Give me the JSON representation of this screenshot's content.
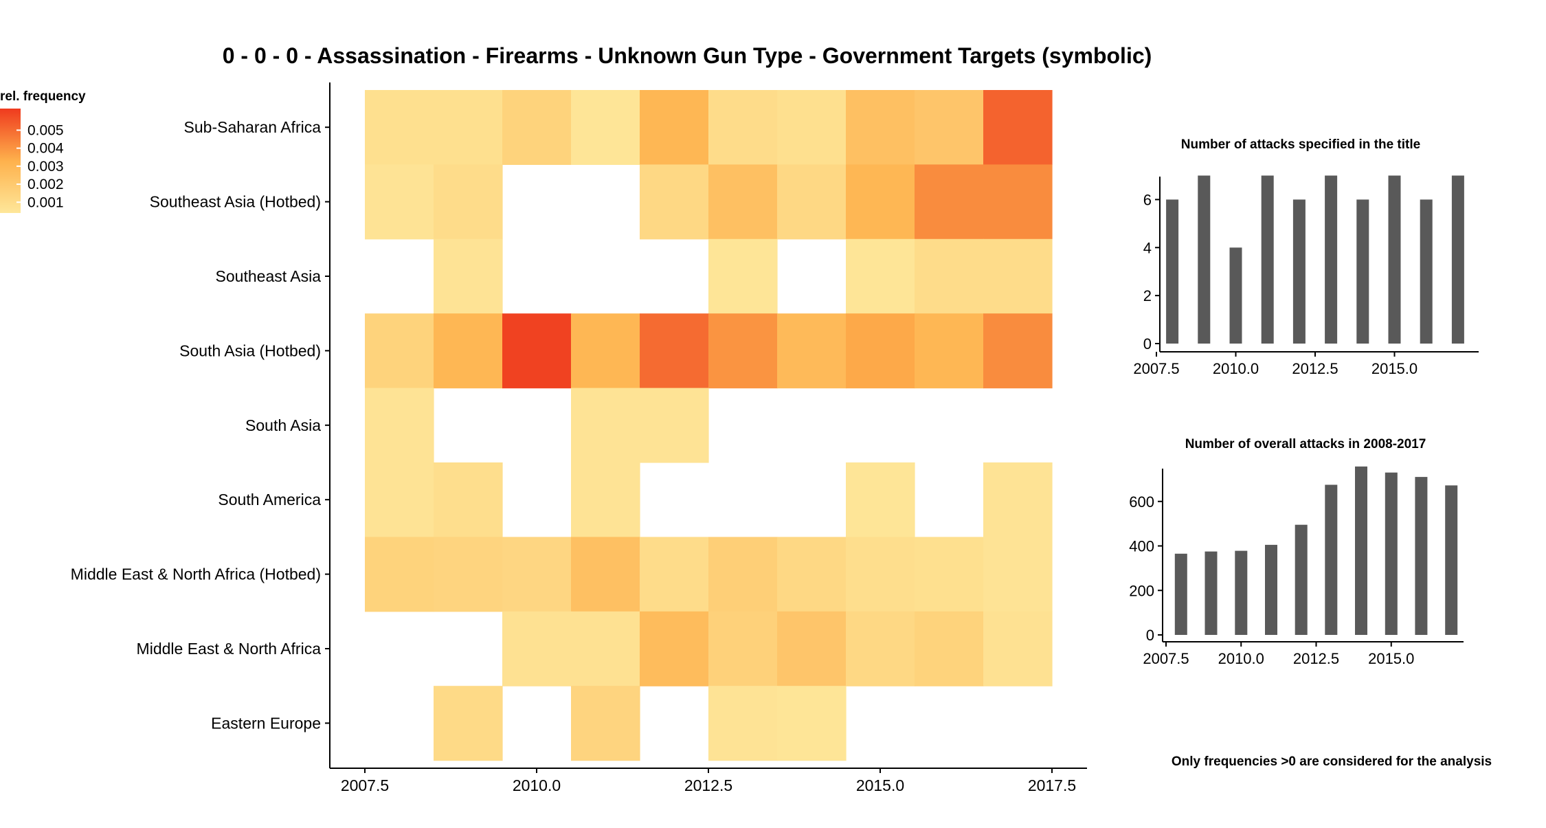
{
  "colors": {
    "scale_low": "#fee79a",
    "scale_mid": "#feb14c",
    "scale_high": "#ef3a1e",
    "bar": "#595959",
    "axis": "#000000"
  },
  "chart_data": [
    {
      "type": "heatmap",
      "title": "0 - 0 - 0 - Assassination - Firearms - Unknown Gun Type - Government Targets (symbolic)",
      "xlabel": "",
      "ylabel": "",
      "x": [
        2008,
        2009,
        2010,
        2011,
        2012,
        2013,
        2014,
        2015,
        2016,
        2017
      ],
      "x_ticks": [
        "2007.5",
        "2010.0",
        "2012.5",
        "2015.0",
        "2017.5"
      ],
      "x_tick_values": [
        2007.5,
        2010.0,
        2012.5,
        2015.0,
        2017.5
      ],
      "xlim": [
        2007.5,
        2017.5
      ],
      "categories": [
        "Sub-Saharan Africa",
        "Southeast Asia (Hotbed)",
        "Southeast Asia",
        "South Asia (Hotbed)",
        "South Asia",
        "South America",
        "Middle East & North Africa (Hotbed)",
        "Middle East & North Africa",
        "Eastern Europe"
      ],
      "values": [
        [
          0.0008,
          0.0008,
          0.0015,
          0.0005,
          0.003,
          0.001,
          0.0008,
          0.0025,
          0.0022,
          0.0052
        ],
        [
          0.0006,
          0.001,
          null,
          null,
          0.0012,
          0.0025,
          0.0012,
          0.003,
          0.0042,
          0.0042
        ],
        [
          null,
          0.0006,
          null,
          null,
          null,
          0.0005,
          null,
          0.0005,
          0.001,
          0.001
        ],
        [
          0.0015,
          0.003,
          0.006,
          0.003,
          0.005,
          0.004,
          0.0028,
          0.0035,
          0.003,
          0.0042
        ],
        [
          0.0006,
          null,
          null,
          0.0006,
          0.0006,
          null,
          null,
          null,
          null,
          null
        ],
        [
          0.0006,
          0.0009,
          null,
          0.0006,
          null,
          null,
          null,
          0.0005,
          null,
          0.0006
        ],
        [
          0.0015,
          0.0014,
          0.0013,
          0.0025,
          0.001,
          0.0017,
          0.0012,
          0.0009,
          0.0008,
          0.0006
        ],
        [
          null,
          null,
          0.0007,
          0.0007,
          0.0027,
          0.0016,
          0.0022,
          0.0012,
          0.0015,
          0.0007
        ],
        [
          null,
          0.0011,
          null,
          0.0014,
          null,
          0.0006,
          0.0005,
          null,
          null,
          null
        ]
      ],
      "legend": {
        "title": "rel. frequency",
        "labels": [
          "0.005",
          "0.004",
          "0.003",
          "0.002",
          "0.001"
        ],
        "label_values": [
          0.005,
          0.004,
          0.003,
          0.002,
          0.001
        ],
        "range": [
          0.0004,
          0.0062
        ],
        "placement": "left"
      }
    },
    {
      "type": "bar",
      "title": "Number of attacks specified in the title",
      "x": [
        2008,
        2009,
        2010,
        2011,
        2012,
        2013,
        2014,
        2015,
        2016,
        2017
      ],
      "values": [
        6,
        7,
        4,
        7,
        6,
        7,
        6,
        7,
        6,
        7
      ],
      "xlim": [
        2007.5,
        2017.5
      ],
      "ylim": [
        0,
        7.3
      ],
      "x_ticks": [
        "2007.5",
        "2010.0",
        "2012.5",
        "2015.0"
      ],
      "x_tick_values": [
        2007.5,
        2010.0,
        2012.5,
        2015.0
      ],
      "y_ticks": [
        "0",
        "2",
        "4",
        "6"
      ],
      "y_tick_values": [
        0,
        2,
        4,
        6
      ]
    },
    {
      "type": "bar",
      "title": "Number of overall attacks in 2008-2017",
      "x": [
        2008,
        2009,
        2010,
        2011,
        2012,
        2013,
        2014,
        2015,
        2016,
        2017
      ],
      "values": [
        365,
        375,
        378,
        405,
        495,
        675,
        757,
        730,
        710,
        672
      ],
      "xlim": [
        2007.5,
        2017.5
      ],
      "ylim": [
        0,
        800
      ],
      "x_ticks": [
        "2007.5",
        "2010.0",
        "2012.5",
        "2015.0"
      ],
      "x_tick_values": [
        2007.5,
        2010.0,
        2012.5,
        2015.0
      ],
      "y_ticks": [
        "0",
        "200",
        "400",
        "600"
      ],
      "y_tick_values": [
        0,
        200,
        400,
        600
      ]
    }
  ],
  "footnote": "Only frequencies >0 are considered for the analysis"
}
